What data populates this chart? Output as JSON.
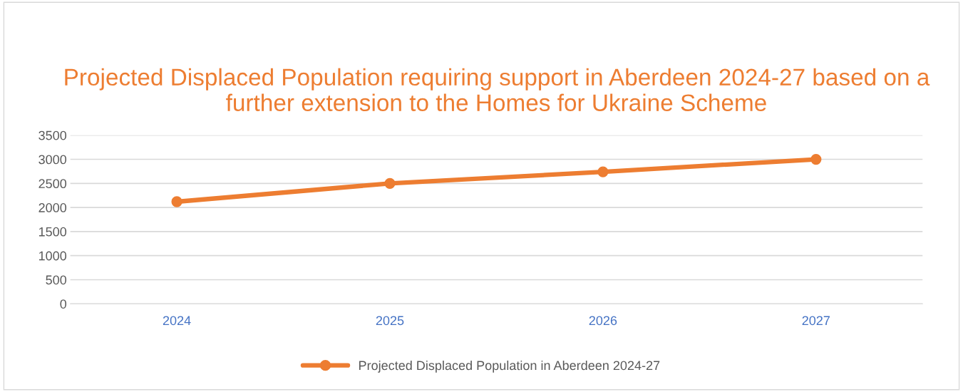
{
  "chart_data": {
    "type": "line",
    "title": "Projected Displaced Population requiring support in Aberdeen 2024-27 based on a further extension to the Homes for Ukraine Scheme",
    "categories": [
      "2024",
      "2025",
      "2026",
      "2027"
    ],
    "series": [
      {
        "name": "Projected Displaced Population in Aberdeen 2024-27",
        "color": "#ed7d31",
        "values": [
          2120,
          2500,
          2740,
          3000
        ]
      }
    ],
    "ylim": [
      0,
      3500
    ],
    "yticks": [
      0,
      500,
      1000,
      1500,
      2000,
      2500,
      3000,
      3500
    ],
    "grid": "y",
    "legend": "bottom",
    "marker": "circle",
    "line_style": "solid"
  }
}
